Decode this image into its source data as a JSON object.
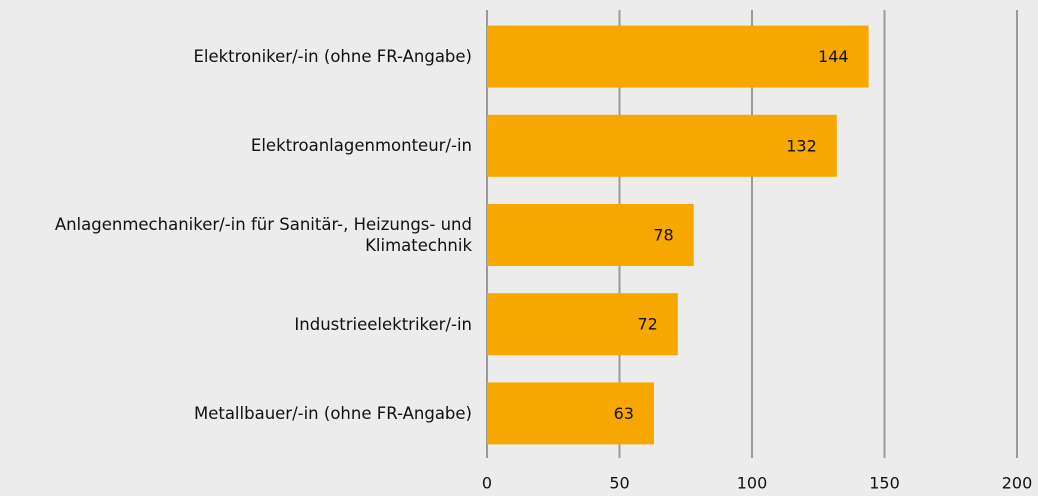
{
  "chart_data": {
    "type": "bar",
    "orientation": "horizontal",
    "categories": [
      "Elektroniker/-in (ohne FR-Angabe)",
      "Elektroanlagenmonteur/-in",
      "Anlagenmechaniker/-in für Sanitär-, Heizungs- und Klimatechnik",
      "Industrieelektriker/-in",
      "Metallbauer/-in (ohne FR-Angabe)"
    ],
    "values": [
      144,
      132,
      78,
      72,
      63
    ],
    "color": "#f7a800",
    "xlim": [
      0,
      200
    ],
    "xticks": [
      0,
      50,
      100,
      150,
      200
    ],
    "grid": true
  }
}
